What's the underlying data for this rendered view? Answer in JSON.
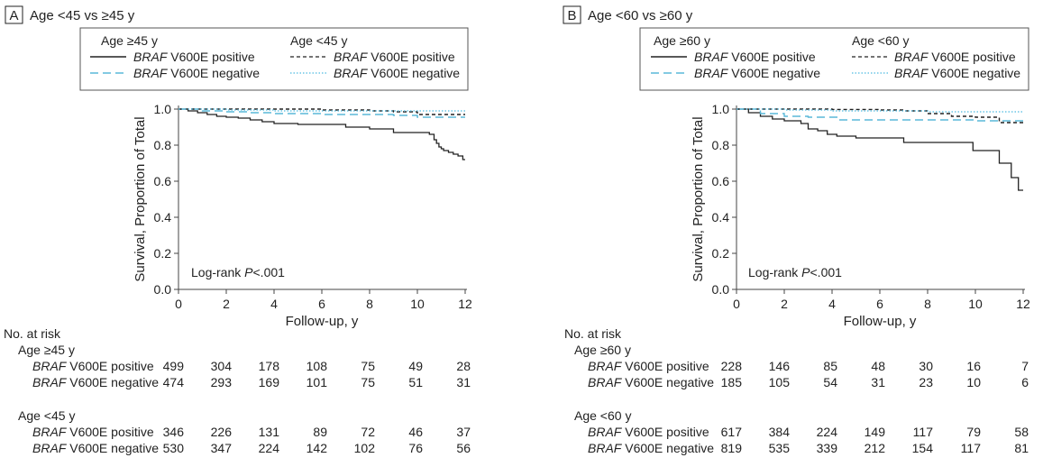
{
  "panels": [
    {
      "letter": "A",
      "title": "Age <45 vs ≥45 y",
      "legend": {
        "group1": "Age ≥45 y",
        "group2": "Age <45 y",
        "gene": "BRAF",
        "pos": "V600E positive",
        "neg": "V600E negative",
        "pos2": "V600E  positive",
        "neg2": "V600E  negative"
      },
      "annotation_prefix": "Log-rank ",
      "annotation_p": "P",
      "annotation_suffix": "<.001",
      "risk": {
        "header": "No. at risk",
        "groups": [
          {
            "label": "Age ≥45 y",
            "rows": [
              {
                "gene": "BRAF",
                "label": "V600E positive",
                "values": [
                  "499",
                  "304",
                  "178",
                  "108",
                  "75",
                  "49",
                  "28"
                ]
              },
              {
                "gene": "BRAF",
                "label": "V600E negative",
                "values": [
                  "474",
                  "293",
                  "169",
                  "101",
                  "75",
                  "51",
                  "31"
                ]
              }
            ]
          },
          {
            "label": "Age <45 y",
            "rows": [
              {
                "gene": "BRAF",
                "label": "V600E positive",
                "values": [
                  "346",
                  "226",
                  "131",
                  "89",
                  "72",
                  "46",
                  "37"
                ]
              },
              {
                "gene": "BRAF",
                "label": "V600E negative",
                "values": [
                  "530",
                  "347",
                  "224",
                  "142",
                  "102",
                  "76",
                  "56"
                ]
              }
            ]
          }
        ]
      }
    },
    {
      "letter": "B",
      "title": "Age <60 vs ≥60 y",
      "legend": {
        "group1": "Age ≥60 y",
        "group2": "Age <60 y",
        "gene": "BRAF",
        "pos": "V600E positive",
        "neg": "V600E negative",
        "pos2": "V600E positive",
        "neg2": "V600E negative"
      },
      "annotation_prefix": "Log-rank ",
      "annotation_p": "P",
      "annotation_suffix": "<.001",
      "risk": {
        "header": "No. at risk",
        "groups": [
          {
            "label": "Age ≥60 y",
            "rows": [
              {
                "gene": "BRAF",
                "label": "V600E positive",
                "values": [
                  "228",
                  "146",
                  "85",
                  "48",
                  "30",
                  "16",
                  "7"
                ]
              },
              {
                "gene": "BRAF",
                "label": "V600E negative",
                "values": [
                  "185",
                  "105",
                  "54",
                  "31",
                  "23",
                  "10",
                  "6"
                ]
              }
            ]
          },
          {
            "label": "Age <60 y",
            "rows": [
              {
                "gene": "BRAF",
                "label": "V600E positive",
                "values": [
                  "617",
                  "384",
                  "224",
                  "149",
                  "117",
                  "79",
                  "58"
                ]
              },
              {
                "gene": "BRAF",
                "label": "V600E negative",
                "values": [
                  "819",
                  "535",
                  "339",
                  "212",
                  "154",
                  "117",
                  "81"
                ]
              }
            ]
          }
        ]
      }
    }
  ],
  "colors": {
    "dark": "#222222",
    "light_blue": "#5ab8d8",
    "dotted_blue": "#6cc6e6"
  },
  "chart_data": [
    {
      "type": "line",
      "xlabel": "Follow-up, y",
      "ylabel": "Survival, Proportion of Total",
      "xlim": [
        0,
        12
      ],
      "ylim": [
        0,
        1.0
      ],
      "xticks": [
        "0",
        "2",
        "4",
        "6",
        "8",
        "10",
        "12"
      ],
      "yticks": [
        "0.0",
        "0.2",
        "0.4",
        "0.6",
        "0.8",
        "1.0"
      ],
      "grid": false,
      "series": [
        {
          "group": "Age ≥45 y",
          "status": "positive",
          "style": "solid",
          "color": "#222222",
          "x": [
            0,
            0.4,
            0.8,
            1.2,
            1.6,
            2.0,
            2.5,
            3.0,
            3.5,
            4.0,
            5.0,
            7.0,
            8.0,
            9.0,
            10.5,
            10.7,
            10.8,
            10.9,
            11.0,
            11.1,
            11.3,
            11.5,
            11.7,
            11.9,
            12.0
          ],
          "y": [
            1.0,
            0.99,
            0.98,
            0.97,
            0.96,
            0.955,
            0.95,
            0.94,
            0.93,
            0.92,
            0.915,
            0.9,
            0.89,
            0.87,
            0.86,
            0.83,
            0.81,
            0.79,
            0.78,
            0.77,
            0.76,
            0.75,
            0.74,
            0.72,
            0.72
          ]
        },
        {
          "group": "Age ≥45 y",
          "status": "negative",
          "style": "dashed",
          "color": "#5ab8d8",
          "x": [
            0,
            1.0,
            2.0,
            3.0,
            4.0,
            6.0,
            8.0,
            9.0,
            10.0,
            12.0
          ],
          "y": [
            1.0,
            0.99,
            0.985,
            0.98,
            0.975,
            0.97,
            0.97,
            0.965,
            0.955,
            0.955
          ]
        },
        {
          "group": "Age <45 y",
          "status": "positive",
          "style": "short-dashed",
          "color": "#222222",
          "x": [
            0,
            2.0,
            4.0,
            6.0,
            8.0,
            9.0,
            10.0,
            12.0
          ],
          "y": [
            1.0,
            1.0,
            1.0,
            0.995,
            0.99,
            0.985,
            0.97,
            0.97
          ]
        },
        {
          "group": "Age <45 y",
          "status": "negative",
          "style": "dotted",
          "color": "#6cc6e6",
          "x": [
            0,
            2.0,
            4.0,
            6.0,
            8.0,
            10.0,
            12.0
          ],
          "y": [
            1.0,
            0.995,
            0.99,
            0.99,
            0.99,
            0.99,
            0.99
          ]
        }
      ]
    },
    {
      "type": "line",
      "xlabel": "Follow-up, y",
      "ylabel": "Survival, Proportion of Total",
      "xlim": [
        0,
        12
      ],
      "ylim": [
        0,
        1.0
      ],
      "xticks": [
        "0",
        "2",
        "4",
        "6",
        "8",
        "10",
        "12"
      ],
      "yticks": [
        "0.0",
        "0.2",
        "0.4",
        "0.6",
        "0.8",
        "1.0"
      ],
      "grid": false,
      "series": [
        {
          "group": "Age ≥60 y",
          "status": "positive",
          "style": "solid",
          "color": "#222222",
          "x": [
            0,
            0.5,
            1.0,
            1.5,
            2.0,
            2.7,
            3.0,
            3.4,
            3.8,
            4.2,
            5.0,
            7.0,
            9.9,
            11.0,
            11.5,
            11.8,
            12.0
          ],
          "y": [
            1.0,
            0.98,
            0.96,
            0.945,
            0.935,
            0.92,
            0.89,
            0.88,
            0.86,
            0.85,
            0.84,
            0.815,
            0.77,
            0.7,
            0.62,
            0.55,
            0.55
          ]
        },
        {
          "group": "Age ≥60 y",
          "status": "negative",
          "style": "dashed",
          "color": "#5ab8d8",
          "x": [
            0,
            1.0,
            2.0,
            3.0,
            4.3,
            6.0,
            8.0,
            10.0,
            11.0,
            12.0
          ],
          "y": [
            1.0,
            0.975,
            0.96,
            0.955,
            0.94,
            0.94,
            0.94,
            0.935,
            0.935,
            0.935
          ]
        },
        {
          "group": "Age <60 y",
          "status": "positive",
          "style": "short-dashed",
          "color": "#222222",
          "x": [
            0,
            2.0,
            4.0,
            6.0,
            7.0,
            8.0,
            9.0,
            10.0,
            11.0,
            12.0
          ],
          "y": [
            1.0,
            1.0,
            0.998,
            0.995,
            0.99,
            0.975,
            0.96,
            0.955,
            0.925,
            0.925
          ]
        },
        {
          "group": "Age <60 y",
          "status": "negative",
          "style": "dotted",
          "color": "#6cc6e6",
          "x": [
            0,
            2.0,
            4.0,
            6.0,
            8.0,
            10.0,
            12.0
          ],
          "y": [
            1.0,
            0.995,
            0.99,
            0.99,
            0.985,
            0.985,
            0.985
          ]
        }
      ]
    }
  ]
}
